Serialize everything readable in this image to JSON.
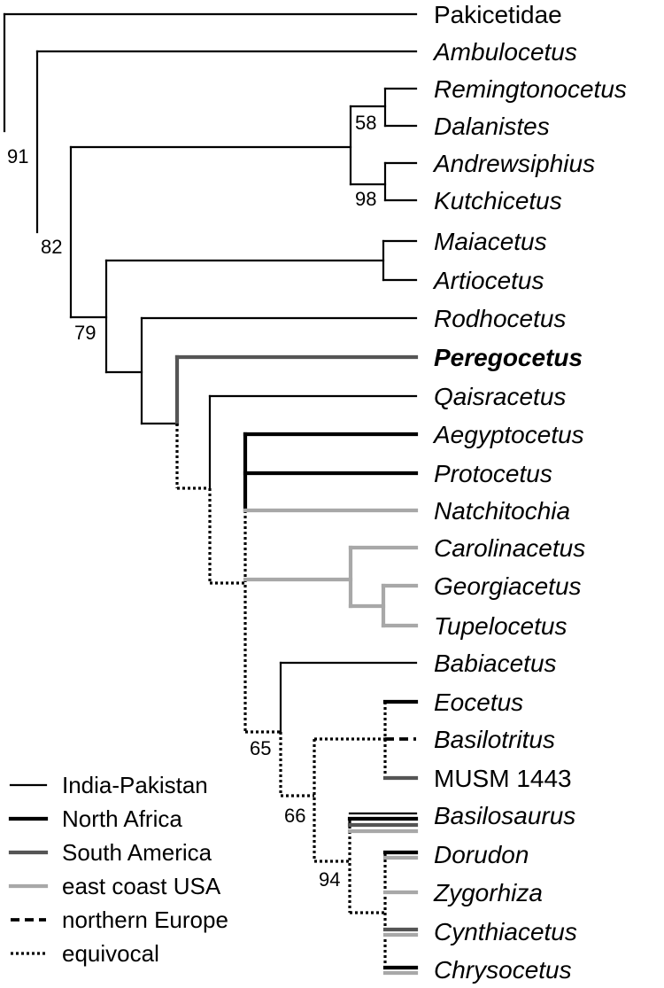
{
  "colors": {
    "india_pakistan": "#000000",
    "north_africa": "#000000",
    "south_america": "#555555",
    "east_coast_usa": "#a8a8a8",
    "northern_europe": "#000000",
    "equivocal": "#000000"
  },
  "taxa": [
    {
      "id": "pakicetidae",
      "label": "Pakicetidae",
      "italic": false,
      "bold": false
    },
    {
      "id": "ambulocetus",
      "label": "Ambulocetus",
      "italic": true,
      "bold": false
    },
    {
      "id": "remingtonocetus",
      "label": "Remingtonocetus",
      "italic": true,
      "bold": false
    },
    {
      "id": "dalanistes",
      "label": "Dalanistes",
      "italic": true,
      "bold": false
    },
    {
      "id": "andrewsiphius",
      "label": "Andrewsiphius",
      "italic": true,
      "bold": false
    },
    {
      "id": "kutchicetus",
      "label": "Kutchicetus",
      "italic": true,
      "bold": false
    },
    {
      "id": "maiacetus",
      "label": "Maiacetus",
      "italic": true,
      "bold": false
    },
    {
      "id": "artiocetus",
      "label": "Artiocetus",
      "italic": true,
      "bold": false
    },
    {
      "id": "rodhocetus",
      "label": "Rodhocetus",
      "italic": true,
      "bold": false
    },
    {
      "id": "peregocetus",
      "label": "Peregocetus",
      "italic": true,
      "bold": true
    },
    {
      "id": "qaisracetus",
      "label": "Qaisracetus",
      "italic": true,
      "bold": false
    },
    {
      "id": "aegyptocetus",
      "label": "Aegyptocetus",
      "italic": true,
      "bold": false
    },
    {
      "id": "protocetus",
      "label": "Protocetus",
      "italic": true,
      "bold": false
    },
    {
      "id": "natchitochia",
      "label": "Natchitochia",
      "italic": true,
      "bold": false
    },
    {
      "id": "carolinacetus",
      "label": "Carolinacetus",
      "italic": true,
      "bold": false
    },
    {
      "id": "georgiacetus",
      "label": "Georgiacetus",
      "italic": true,
      "bold": false
    },
    {
      "id": "tupelocetus",
      "label": "Tupelocetus",
      "italic": true,
      "bold": false
    },
    {
      "id": "babiacetus",
      "label": "Babiacetus",
      "italic": true,
      "bold": false
    },
    {
      "id": "eocetus",
      "label": "Eocetus",
      "italic": true,
      "bold": false
    },
    {
      "id": "basilotritus",
      "label": "Basilotritus",
      "italic": true,
      "bold": false
    },
    {
      "id": "musm1443",
      "label": "MUSM 1443",
      "italic": false,
      "bold": false
    },
    {
      "id": "basilosaurus",
      "label": "Basilosaurus",
      "italic": true,
      "bold": false
    },
    {
      "id": "dorudon",
      "label": "Dorudon",
      "italic": true,
      "bold": false
    },
    {
      "id": "zygorhiza",
      "label": "Zygorhiza",
      "italic": true,
      "bold": false
    },
    {
      "id": "cynthiacetus",
      "label": "Cynthiacetus",
      "italic": true,
      "bold": false
    },
    {
      "id": "chrysocetus",
      "label": "Chrysocetus",
      "italic": true,
      "bold": false
    }
  ],
  "support_values": [
    {
      "id": "root",
      "label": "91"
    },
    {
      "id": "node-ambulocetus",
      "label": "82"
    },
    {
      "id": "node-remingtonocetidae",
      "label": "58"
    },
    {
      "id": "node-andrewsiphius",
      "label": "98"
    },
    {
      "id": "node-protocetid",
      "label": "79"
    },
    {
      "id": "node-babiacetus",
      "label": "65"
    },
    {
      "id": "node-basilosaurid",
      "label": "66"
    },
    {
      "id": "node-crown",
      "label": "94"
    }
  ],
  "legend": [
    {
      "id": "india-pakistan",
      "label": "India-Pakistan",
      "style": "thin"
    },
    {
      "id": "north-africa",
      "label": "North Africa",
      "style": "thick-black"
    },
    {
      "id": "south-america",
      "label": "South America",
      "style": "thick-dark-gray"
    },
    {
      "id": "east-coast-usa",
      "label": "east coast USA",
      "style": "thick-light-gray"
    },
    {
      "id": "northern-europe",
      "label": "northern Europe",
      "style": "dashed"
    },
    {
      "id": "equivocal",
      "label": "equivocal",
      "style": "dotted"
    }
  ]
}
